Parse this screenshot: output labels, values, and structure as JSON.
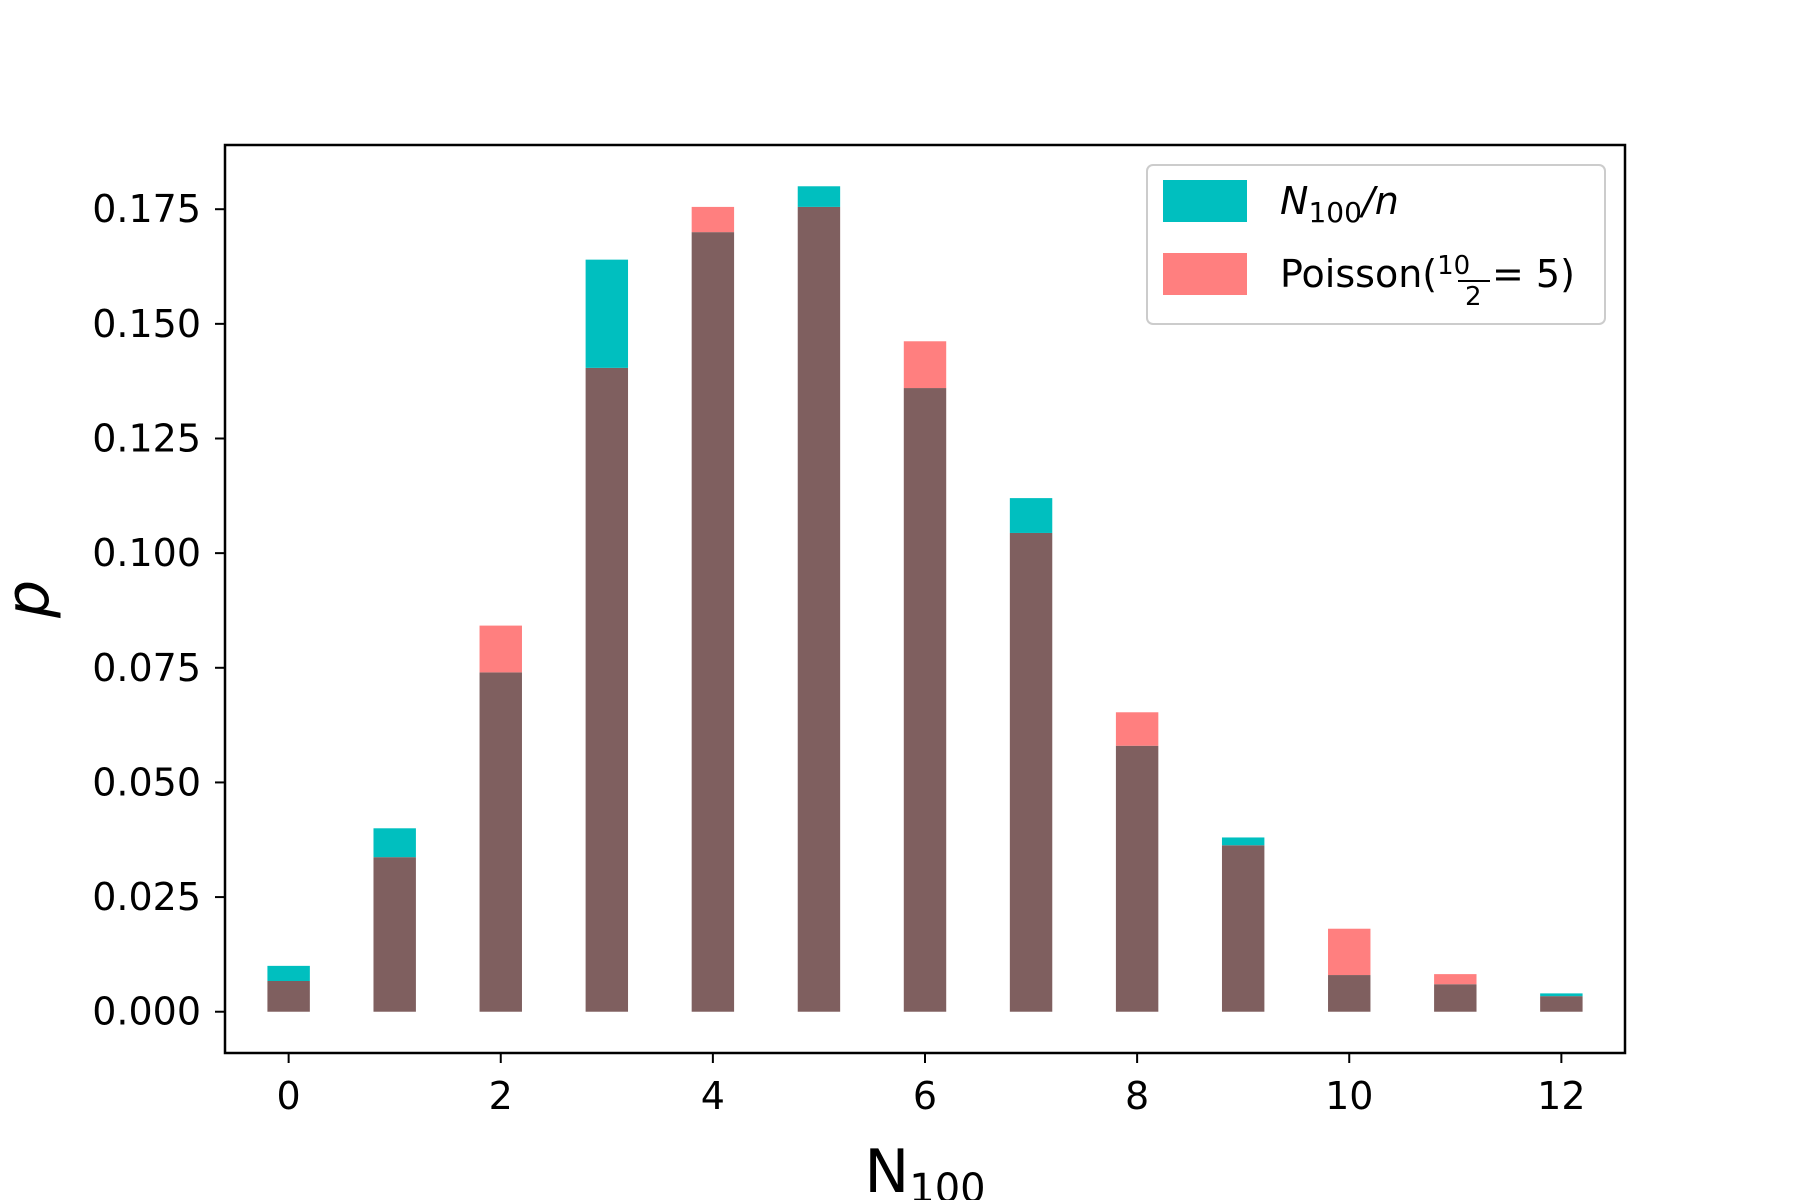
{
  "chart_data": {
    "type": "bar",
    "title": "",
    "xlabel": "N",
    "xlabel_subscript": "100",
    "ylabel": "p",
    "x": [
      0,
      1,
      2,
      3,
      4,
      5,
      6,
      7,
      8,
      9,
      10,
      11,
      12
    ],
    "series": [
      {
        "name": "N100/n",
        "name_parts": {
          "main": "N",
          "sub": "100",
          "suffix": "/n"
        },
        "color": "#00bfbf",
        "values": [
          0.01,
          0.04,
          0.074,
          0.164,
          0.17,
          0.18,
          0.136,
          0.112,
          0.058,
          0.038,
          0.008,
          0.006,
          0.004
        ]
      },
      {
        "name": "Poisson(10/2 = 5)",
        "name_parts": {
          "prefix": "Poisson(",
          "frac_num": "10",
          "frac_den": "2",
          "suffix": " = 5)"
        },
        "color": "#ff7f7f",
        "values": [
          0.0067,
          0.0337,
          0.0842,
          0.1404,
          0.1755,
          0.1755,
          0.1462,
          0.1044,
          0.0653,
          0.0363,
          0.0181,
          0.0082,
          0.0034
        ]
      }
    ],
    "overlap_color": "#7f5f5f",
    "xlim": [
      -0.6,
      12.6
    ],
    "ylim": [
      -0.009,
      0.189
    ],
    "xticks": [
      0,
      2,
      4,
      6,
      8,
      10,
      12
    ],
    "xtick_labels": [
      "0",
      "2",
      "4",
      "6",
      "8",
      "10",
      "12"
    ],
    "yticks": [
      0,
      0.025,
      0.05,
      0.075,
      0.1,
      0.125,
      0.15,
      0.175
    ],
    "ytick_labels": [
      "0.000",
      "0.025",
      "0.050",
      "0.075",
      "0.100",
      "0.125",
      "0.150",
      "0.175"
    ],
    "grid": false,
    "legend_position": "top-right"
  }
}
